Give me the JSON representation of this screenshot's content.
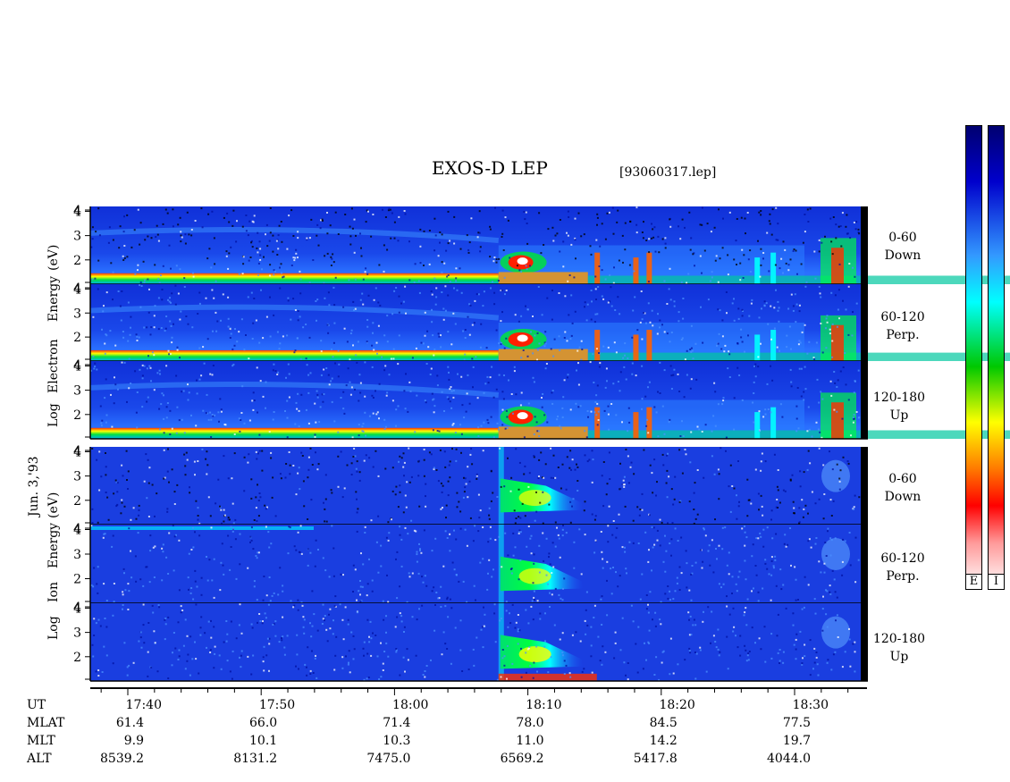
{
  "header": {
    "title": "EXOS-D LEP",
    "filename": "[93060317.lep]"
  },
  "colorbars": [
    {
      "label": "E"
    },
    {
      "label": "I"
    }
  ],
  "axis": {
    "left_date": "Jun. 3,'93",
    "electron_label": [
      "Log",
      "Electron",
      "Energy",
      "(eV)"
    ],
    "ion_label": [
      "Log",
      "Ion",
      "Energy",
      "(eV)"
    ],
    "y_ticks": [
      "4",
      "3",
      "2"
    ]
  },
  "panels": [
    {
      "group": "electron",
      "range": "0-60",
      "direction": "Down"
    },
    {
      "group": "electron",
      "range": "60-120",
      "direction": "Perp."
    },
    {
      "group": "electron",
      "range": "120-180",
      "direction": "Up"
    },
    {
      "group": "ion",
      "range": "0-60",
      "direction": "Down"
    },
    {
      "group": "ion",
      "range": "60-120",
      "direction": "Perp."
    },
    {
      "group": "ion",
      "range": "120-180",
      "direction": "Up"
    }
  ],
  "ephemeris": {
    "rows": [
      "UT",
      "MLAT",
      "MLT",
      "ALT"
    ],
    "columns": [
      {
        "UT": "17:40",
        "MLAT": "61.4",
        "MLT": "9.9",
        "ALT": "8539.2"
      },
      {
        "UT": "17:50",
        "MLAT": "66.0",
        "MLT": "10.1",
        "ALT": "8131.2"
      },
      {
        "UT": "18:00",
        "MLAT": "71.4",
        "MLT": "10.3",
        "ALT": "7475.0"
      },
      {
        "UT": "18:10",
        "MLAT": "78.0",
        "MLT": "11.0",
        "ALT": "6569.2"
      },
      {
        "UT": "18:20",
        "MLAT": "84.5",
        "MLT": "14.2",
        "ALT": "5417.8"
      },
      {
        "UT": "18:30",
        "MLAT": "77.5",
        "MLT": "19.7",
        "ALT": "4044.0"
      }
    ]
  },
  "chart_data": {
    "type": "heatmap",
    "title": "EXOS-D LEP",
    "x": {
      "label": "UT",
      "ticks": [
        "17:40",
        "17:50",
        "18:00",
        "18:10",
        "18:20",
        "18:30"
      ]
    },
    "y": {
      "label": "Log Energy (eV)",
      "ticks": [
        2,
        3,
        4
      ],
      "ylim": [
        1,
        4.2
      ]
    },
    "series": [
      {
        "name": "0-60 Down"
      },
      {
        "name": "60-120 Perp."
      },
      {
        "name": "120-180 Up"
      }
    ],
    "colormap": [
      "#ffffff",
      "#ff9999",
      "#ff0000",
      "#ff7a00",
      "#ffff00",
      "#00c800",
      "#00ffff",
      "#3399ff",
      "#0000cc",
      "#000070"
    ],
    "colors": {
      "background": "#1a3ee0",
      "intense": "#00ff40"
    }
  }
}
